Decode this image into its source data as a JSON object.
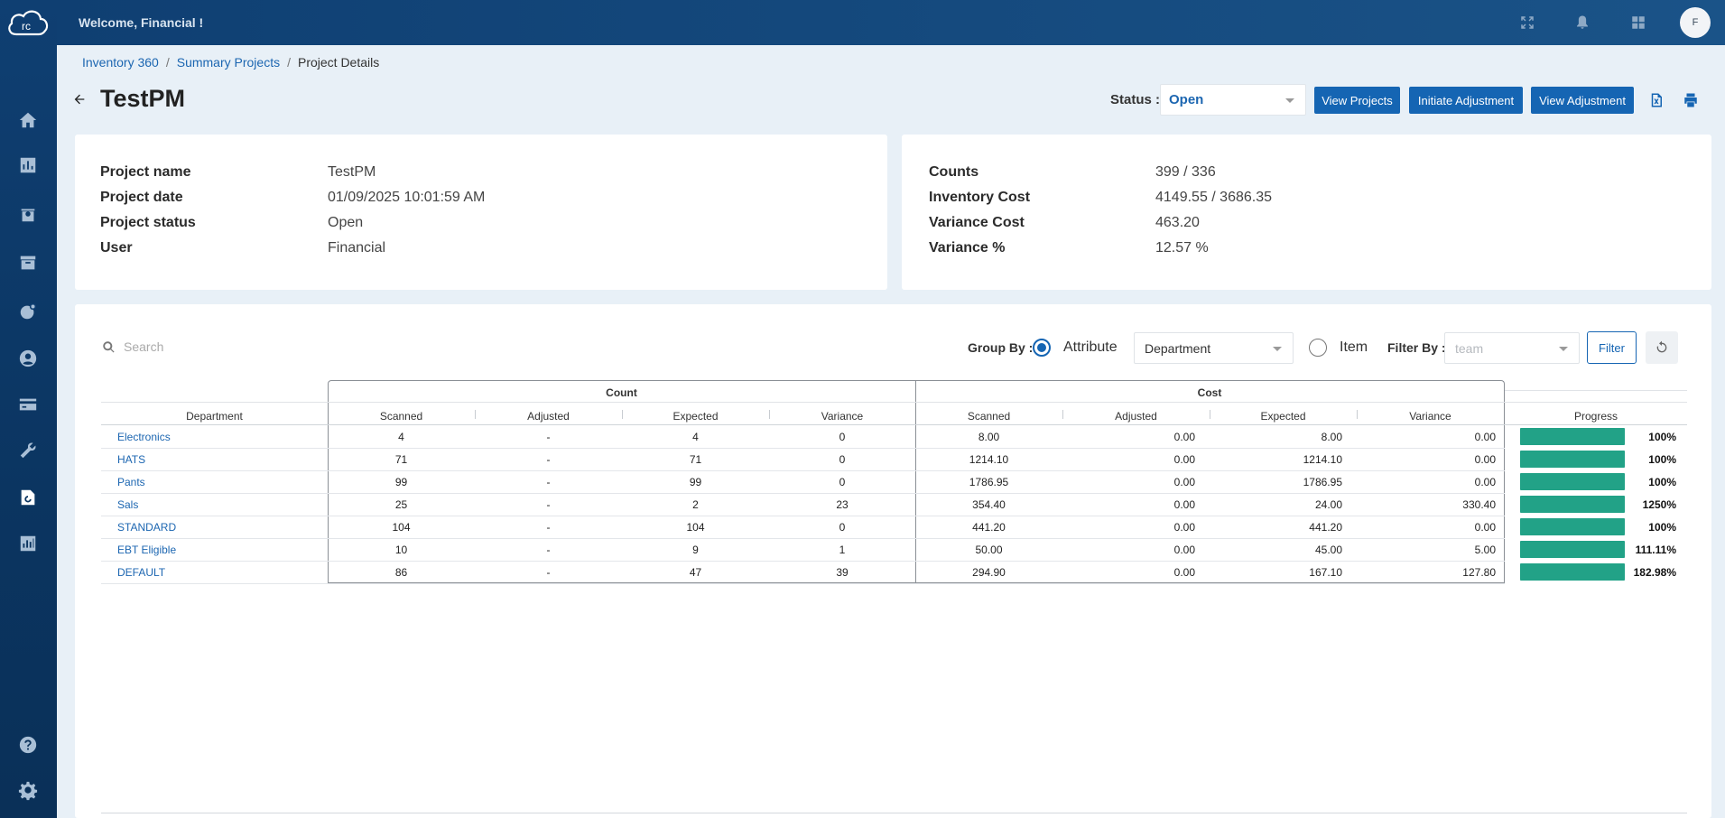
{
  "app": {
    "welcome": "Welcome, Financial !",
    "avatar_initial": "F",
    "logo_text": "rc"
  },
  "breadcrumb": [
    {
      "label": "Inventory 360"
    },
    {
      "label": "Summary Projects"
    },
    {
      "label": "Project Details"
    }
  ],
  "page": {
    "title": "TestPM",
    "status_label": "Status :",
    "status_value": "Open",
    "buttons": {
      "view_projects": "View Projects",
      "initiate_adjustment": "Initiate Adjustment",
      "view_adjustment": "View Adjustment"
    }
  },
  "project_info": {
    "name_label": "Project name",
    "name_value": "TestPM",
    "date_label": "Project date",
    "date_value": "01/09/2025 10:01:59 AM",
    "status_label": "Project status",
    "status_value": "Open",
    "user_label": "User",
    "user_value": "Financial"
  },
  "summary": {
    "counts_label": "Counts",
    "counts_value": "399 / 336",
    "inv_cost_label": "Inventory Cost",
    "inv_cost_value": "4149.55 / 3686.35",
    "var_cost_label": "Variance Cost",
    "var_cost_value": "463.20",
    "var_pct_label": "Variance %",
    "var_pct_value": "12.57 %"
  },
  "controls": {
    "search_placeholder": "Search",
    "group_by_label": "Group By :",
    "attribute_label": "Attribute",
    "attribute_value": "Department",
    "item_label": "Item",
    "filter_by_label": "Filter By :",
    "filter_by_placeholder": "team",
    "filter_button": "Filter"
  },
  "table": {
    "dept_header": "Department",
    "count_group": "Count",
    "cost_group": "Cost",
    "progress_header": "Progress",
    "sub_headers": [
      "Scanned",
      "Adjusted",
      "Expected",
      "Variance"
    ],
    "rows": [
      {
        "dept": "Electronics",
        "c_scanned": "4",
        "c_adjusted": "-",
        "c_expected": "4",
        "c_variance": "0",
        "k_scanned": "8.00",
        "k_adjusted": "0.00",
        "k_expected": "8.00",
        "k_variance": "0.00",
        "progress": "100%",
        "progress_fraction": 1.0
      },
      {
        "dept": "HATS",
        "c_scanned": "71",
        "c_adjusted": "-",
        "c_expected": "71",
        "c_variance": "0",
        "k_scanned": "1214.10",
        "k_adjusted": "0.00",
        "k_expected": "1214.10",
        "k_variance": "0.00",
        "progress": "100%",
        "progress_fraction": 1.0
      },
      {
        "dept": "Pants",
        "c_scanned": "99",
        "c_adjusted": "-",
        "c_expected": "99",
        "c_variance": "0",
        "k_scanned": "1786.95",
        "k_adjusted": "0.00",
        "k_expected": "1786.95",
        "k_variance": "0.00",
        "progress": "100%",
        "progress_fraction": 1.0
      },
      {
        "dept": "Sals",
        "c_scanned": "25",
        "c_adjusted": "-",
        "c_expected": "2",
        "c_variance": "23",
        "k_scanned": "354.40",
        "k_adjusted": "0.00",
        "k_expected": "24.00",
        "k_variance": "330.40",
        "progress": "1250%",
        "progress_fraction": 1.0
      },
      {
        "dept": "STANDARD",
        "c_scanned": "104",
        "c_adjusted": "-",
        "c_expected": "104",
        "c_variance": "0",
        "k_scanned": "441.20",
        "k_adjusted": "0.00",
        "k_expected": "441.20",
        "k_variance": "0.00",
        "progress": "100%",
        "progress_fraction": 1.0
      },
      {
        "dept": "EBT Eligible",
        "c_scanned": "10",
        "c_adjusted": "-",
        "c_expected": "9",
        "c_variance": "1",
        "k_scanned": "50.00",
        "k_adjusted": "0.00",
        "k_expected": "45.00",
        "k_variance": "5.00",
        "progress": "111.11%",
        "progress_fraction": 1.0
      },
      {
        "dept": "DEFAULT",
        "c_scanned": "86",
        "c_adjusted": "-",
        "c_expected": "47",
        "c_variance": "39",
        "k_scanned": "294.90",
        "k_adjusted": "0.00",
        "k_expected": "167.10",
        "k_variance": "127.80",
        "progress": "182.98%",
        "progress_fraction": 1.0
      }
    ]
  },
  "colors": {
    "primary": "#1565b3",
    "progress": "#22a287",
    "sidebar": "#0f3f72"
  },
  "icons": {
    "sidebar": [
      "home-icon",
      "chart-bar-icon",
      "box-icon",
      "archive-icon",
      "globe-pin-icon",
      "user-circle-icon",
      "credit-card-icon",
      "wrench-icon",
      "inventory-cycle-icon",
      "report-icon",
      "help-icon",
      "settings-icon"
    ],
    "top": [
      "fullscreen-icon",
      "bell-icon",
      "grid-apps-icon"
    ]
  }
}
